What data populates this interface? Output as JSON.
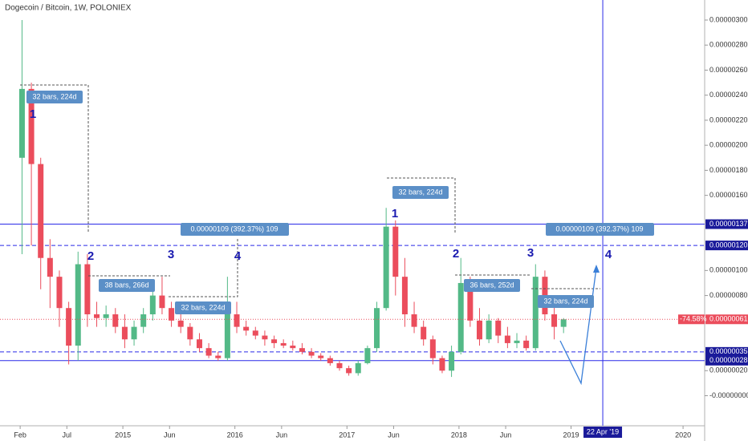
{
  "chart_data": {
    "type": "candlestick",
    "title": "Dogecoin / Bitcoin, 1W, POLONIEX",
    "x": [
      "2014-02",
      "2014-03",
      "2014-04",
      "2014-05",
      "2014-06",
      "2014-07",
      "2014-08",
      "2014-09",
      "2014-10",
      "2014-11",
      "2014-12",
      "2015-01",
      "2015-02",
      "2015-03",
      "2015-04",
      "2015-05",
      "2015-06",
      "2015-07",
      "2015-08",
      "2015-09",
      "2015-10",
      "2015-11",
      "2015-12",
      "2016-01",
      "2016-02",
      "2016-03",
      "2016-04",
      "2016-05",
      "2016-06",
      "2016-07",
      "2016-08",
      "2016-09",
      "2016-10",
      "2016-11",
      "2016-12",
      "2017-01",
      "2017-02",
      "2017-03",
      "2017-04",
      "2017-05",
      "2017-06",
      "2017-07",
      "2017-08",
      "2017-09",
      "2017-10",
      "2017-11",
      "2017-12",
      "2018-01",
      "2018-02",
      "2018-03",
      "2018-04",
      "2018-05",
      "2018-06",
      "2018-07",
      "2018-08",
      "2018-09",
      "2018-10",
      "2018-11",
      "2018-12"
    ],
    "open": [
      1.9e-06,
      2.45e-06,
      1.85e-06,
      1.1e-06,
      9.5e-07,
      7e-07,
      4e-07,
      1.05e-06,
      6.5e-07,
      6.2e-07,
      6.5e-07,
      5.5e-07,
      4.5e-07,
      5.5e-07,
      6.5e-07,
      8e-07,
      7e-07,
      6e-07,
      5.5e-07,
      4.5e-07,
      3.8e-07,
      3.2e-07,
      3e-07,
      6.5e-07,
      5.5e-07,
      5.2e-07,
      4.8e-07,
      4.5e-07,
      4.2e-07,
      4e-07,
      3.8e-07,
      3.5e-07,
      3.2e-07,
      3e-07,
      2.6e-07,
      2.2e-07,
      1.8e-07,
      2.6e-07,
      3.8e-07,
      7e-07,
      1.35e-06,
      9.5e-07,
      6.5e-07,
      5.5e-07,
      4.5e-07,
      3e-07,
      2e-07,
      3.5e-07,
      9e-07,
      6e-07,
      4.5e-07,
      6e-07,
      4.8e-07,
      4.2e-07,
      4.4e-07,
      3.8e-07,
      9.5e-07,
      6.5e-07,
      5.5e-07
    ],
    "high": [
      3e-06,
      2.5e-06,
      1.9e-06,
      1.25e-06,
      1e-06,
      7.5e-07,
      1.15e-06,
      1.13e-06,
      7.5e-07,
      7.2e-07,
      7e-07,
      6.5e-07,
      6e-07,
      7e-07,
      8.5e-07,
      9.5e-07,
      7.5e-07,
      6.5e-07,
      5.8e-07,
      5e-07,
      4.2e-07,
      3.5e-07,
      9.5e-07,
      7.5e-07,
      6e-07,
      5.5e-07,
      5.2e-07,
      4.8e-07,
      4.5e-07,
      4.4e-07,
      4.2e-07,
      3.8e-07,
      3.4e-07,
      3.2e-07,
      2.8e-07,
      2.4e-07,
      2.8e-07,
      4e-07,
      7.5e-07,
      1.5e-06,
      1.4e-06,
      1.1e-06,
      7.5e-07,
      6e-07,
      4.8e-07,
      3.2e-07,
      4e-07,
      1.1e-06,
      9.5e-07,
      7e-07,
      6.5e-07,
      6.2e-07,
      5.5e-07,
      5e-07,
      4.8e-07,
      1.05e-06,
      1e-06,
      7.5e-07,
      6.2e-07
    ],
    "low": [
      1.13e-06,
      1.2e-06,
      8.5e-07,
      7e-07,
      5.5e-07,
      2.5e-07,
      2.8e-07,
      5.5e-07,
      5.5e-07,
      5.5e-07,
      5e-07,
      3.8e-07,
      4e-07,
      5e-07,
      6e-07,
      6.5e-07,
      5.5e-07,
      5e-07,
      4e-07,
      3.5e-07,
      3e-07,
      2.8e-07,
      2.8e-07,
      5e-07,
      4.8e-07,
      4.5e-07,
      4e-07,
      3.8e-07,
      3.8e-07,
      3.6e-07,
      3.3e-07,
      3e-07,
      2.8e-07,
      2.4e-07,
      2e-07,
      1.6e-07,
      1.6e-07,
      2.5e-07,
      3.5e-07,
      6.8e-07,
      8e-07,
      5.5e-07,
      5e-07,
      4e-07,
      2.5e-07,
      1.8e-07,
      1.5e-07,
      3.3e-07,
      5.5e-07,
      4e-07,
      4.2e-07,
      4.2e-07,
      3.8e-07,
      3.8e-07,
      3.6e-07,
      3.6e-07,
      6e-07,
      4.5e-07,
      5e-07
    ],
    "close": [
      2.45e-06,
      1.85e-06,
      1.1e-06,
      9.5e-07,
      7e-07,
      4e-07,
      1.05e-06,
      6.5e-07,
      6.2e-07,
      6.5e-07,
      5.5e-07,
      4.5e-07,
      5.5e-07,
      6.5e-07,
      8e-07,
      7e-07,
      6e-07,
      5.5e-07,
      4.5e-07,
      3.8e-07,
      3.2e-07,
      3e-07,
      6.5e-07,
      5.5e-07,
      5.2e-07,
      4.8e-07,
      4.5e-07,
      4.2e-07,
      4e-07,
      3.8e-07,
      3.5e-07,
      3.2e-07,
      3e-07,
      2.6e-07,
      2.2e-07,
      1.8e-07,
      2.6e-07,
      3.8e-07,
      7e-07,
      1.35e-06,
      9.5e-07,
      6.5e-07,
      5.5e-07,
      4.5e-07,
      3e-07,
      2e-07,
      3.5e-07,
      9e-07,
      6e-07,
      4.5e-07,
      6e-07,
      4.8e-07,
      4.2e-07,
      4.4e-07,
      3.8e-07,
      9.5e-07,
      6.5e-07,
      5.5e-07,
      6.1e-07
    ],
    "up_color": "#53b987",
    "down_color": "#eb4d5c",
    "ylim": [
      -2.4e-07,
      3.16e-06
    ],
    "yticks": [
      {
        "value": 3e-06,
        "label": "0.00000300"
      },
      {
        "value": 2.8e-06,
        "label": "0.00000280"
      },
      {
        "value": 2.6e-06,
        "label": "0.00000260"
      },
      {
        "value": 2.4e-06,
        "label": "0.00000240"
      },
      {
        "value": 2.2e-06,
        "label": "0.00000220"
      },
      {
        "value": 2e-06,
        "label": "0.00000200"
      },
      {
        "value": 1.8e-06,
        "label": "0.00000180"
      },
      {
        "value": 1.6e-06,
        "label": "0.00000160"
      },
      {
        "value": 1e-06,
        "label": "0.00000100"
      },
      {
        "value": 8e-07,
        "label": "0.00000080"
      },
      {
        "value": 2e-07,
        "label": "0.00000020"
      },
      {
        "value": 0,
        "label": "-0.00000000"
      }
    ],
    "xticks": [
      {
        "value": "2014-02",
        "label": "Feb"
      },
      {
        "value": "2014-07",
        "label": "Jul"
      },
      {
        "value": "2015-01",
        "label": "2015"
      },
      {
        "value": "2015-06",
        "label": "Jun"
      },
      {
        "value": "2016-01",
        "label": "2016"
      },
      {
        "value": "2016-06",
        "label": "Jun"
      },
      {
        "value": "2017-01",
        "label": "2017"
      },
      {
        "value": "2017-06",
        "label": "Jun"
      },
      {
        "value": "2018-01",
        "label": "2018"
      },
      {
        "value": "2018-06",
        "label": "Jun"
      },
      {
        "value": "2019-01",
        "label": "2019"
      },
      {
        "value": "2020-01",
        "label": "2020"
      }
    ],
    "price_lines": [
      {
        "value": 1.37e-06,
        "label": "0.00000137",
        "style": "solid"
      },
      {
        "value": 1.2e-06,
        "label": "0.00000120",
        "style": "dashed"
      },
      {
        "value": 3.5e-07,
        "label": "0.00000035",
        "style": "dashed"
      },
      {
        "value": 2.8e-07,
        "label": "0.00000028",
        "style": "solid"
      }
    ],
    "line_color": "#2a2ae8",
    "last_price": {
      "value": 6.1e-07,
      "label": "0.00000061",
      "change": "-74.58%"
    },
    "vertical_line": {
      "x": "2019-04",
      "label": "22 Apr '19"
    },
    "measurements": [
      "32 bars, 224d",
      "38 bars, 266d",
      "32 bars, 224d",
      "32 bars, 224d",
      "36 bars, 252d",
      "32 bars, 224d"
    ],
    "ranges": [
      "0.00000109 (392.37%) 109",
      "0.00000109 (392.37%) 109"
    ],
    "waves": [
      "1",
      "2",
      "3",
      "4",
      "1",
      "2",
      "3",
      "4"
    ]
  }
}
